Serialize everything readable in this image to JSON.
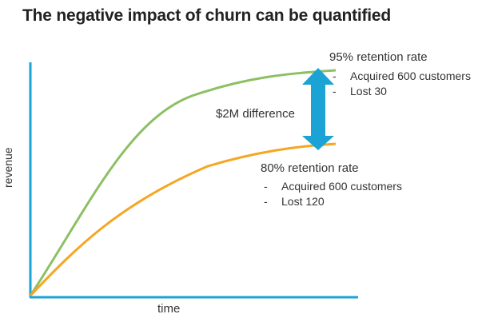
{
  "title": "The negative impact of churn can be quantified",
  "axes": {
    "x_label": "time",
    "y_label": "revenue",
    "axis_color": "#1aa3d4"
  },
  "difference_label": "$2M difference",
  "arrow_color": "#1aa3d4",
  "scenarios": [
    {
      "label": "95% retention rate",
      "color": "#8dc063",
      "points": [
        "Acquired 600 customers",
        "Lost 30"
      ]
    },
    {
      "label": "80% retention rate",
      "color": "#f5a623",
      "points": [
        "Acquired 600 customers",
        "Lost 120"
      ]
    }
  ]
}
